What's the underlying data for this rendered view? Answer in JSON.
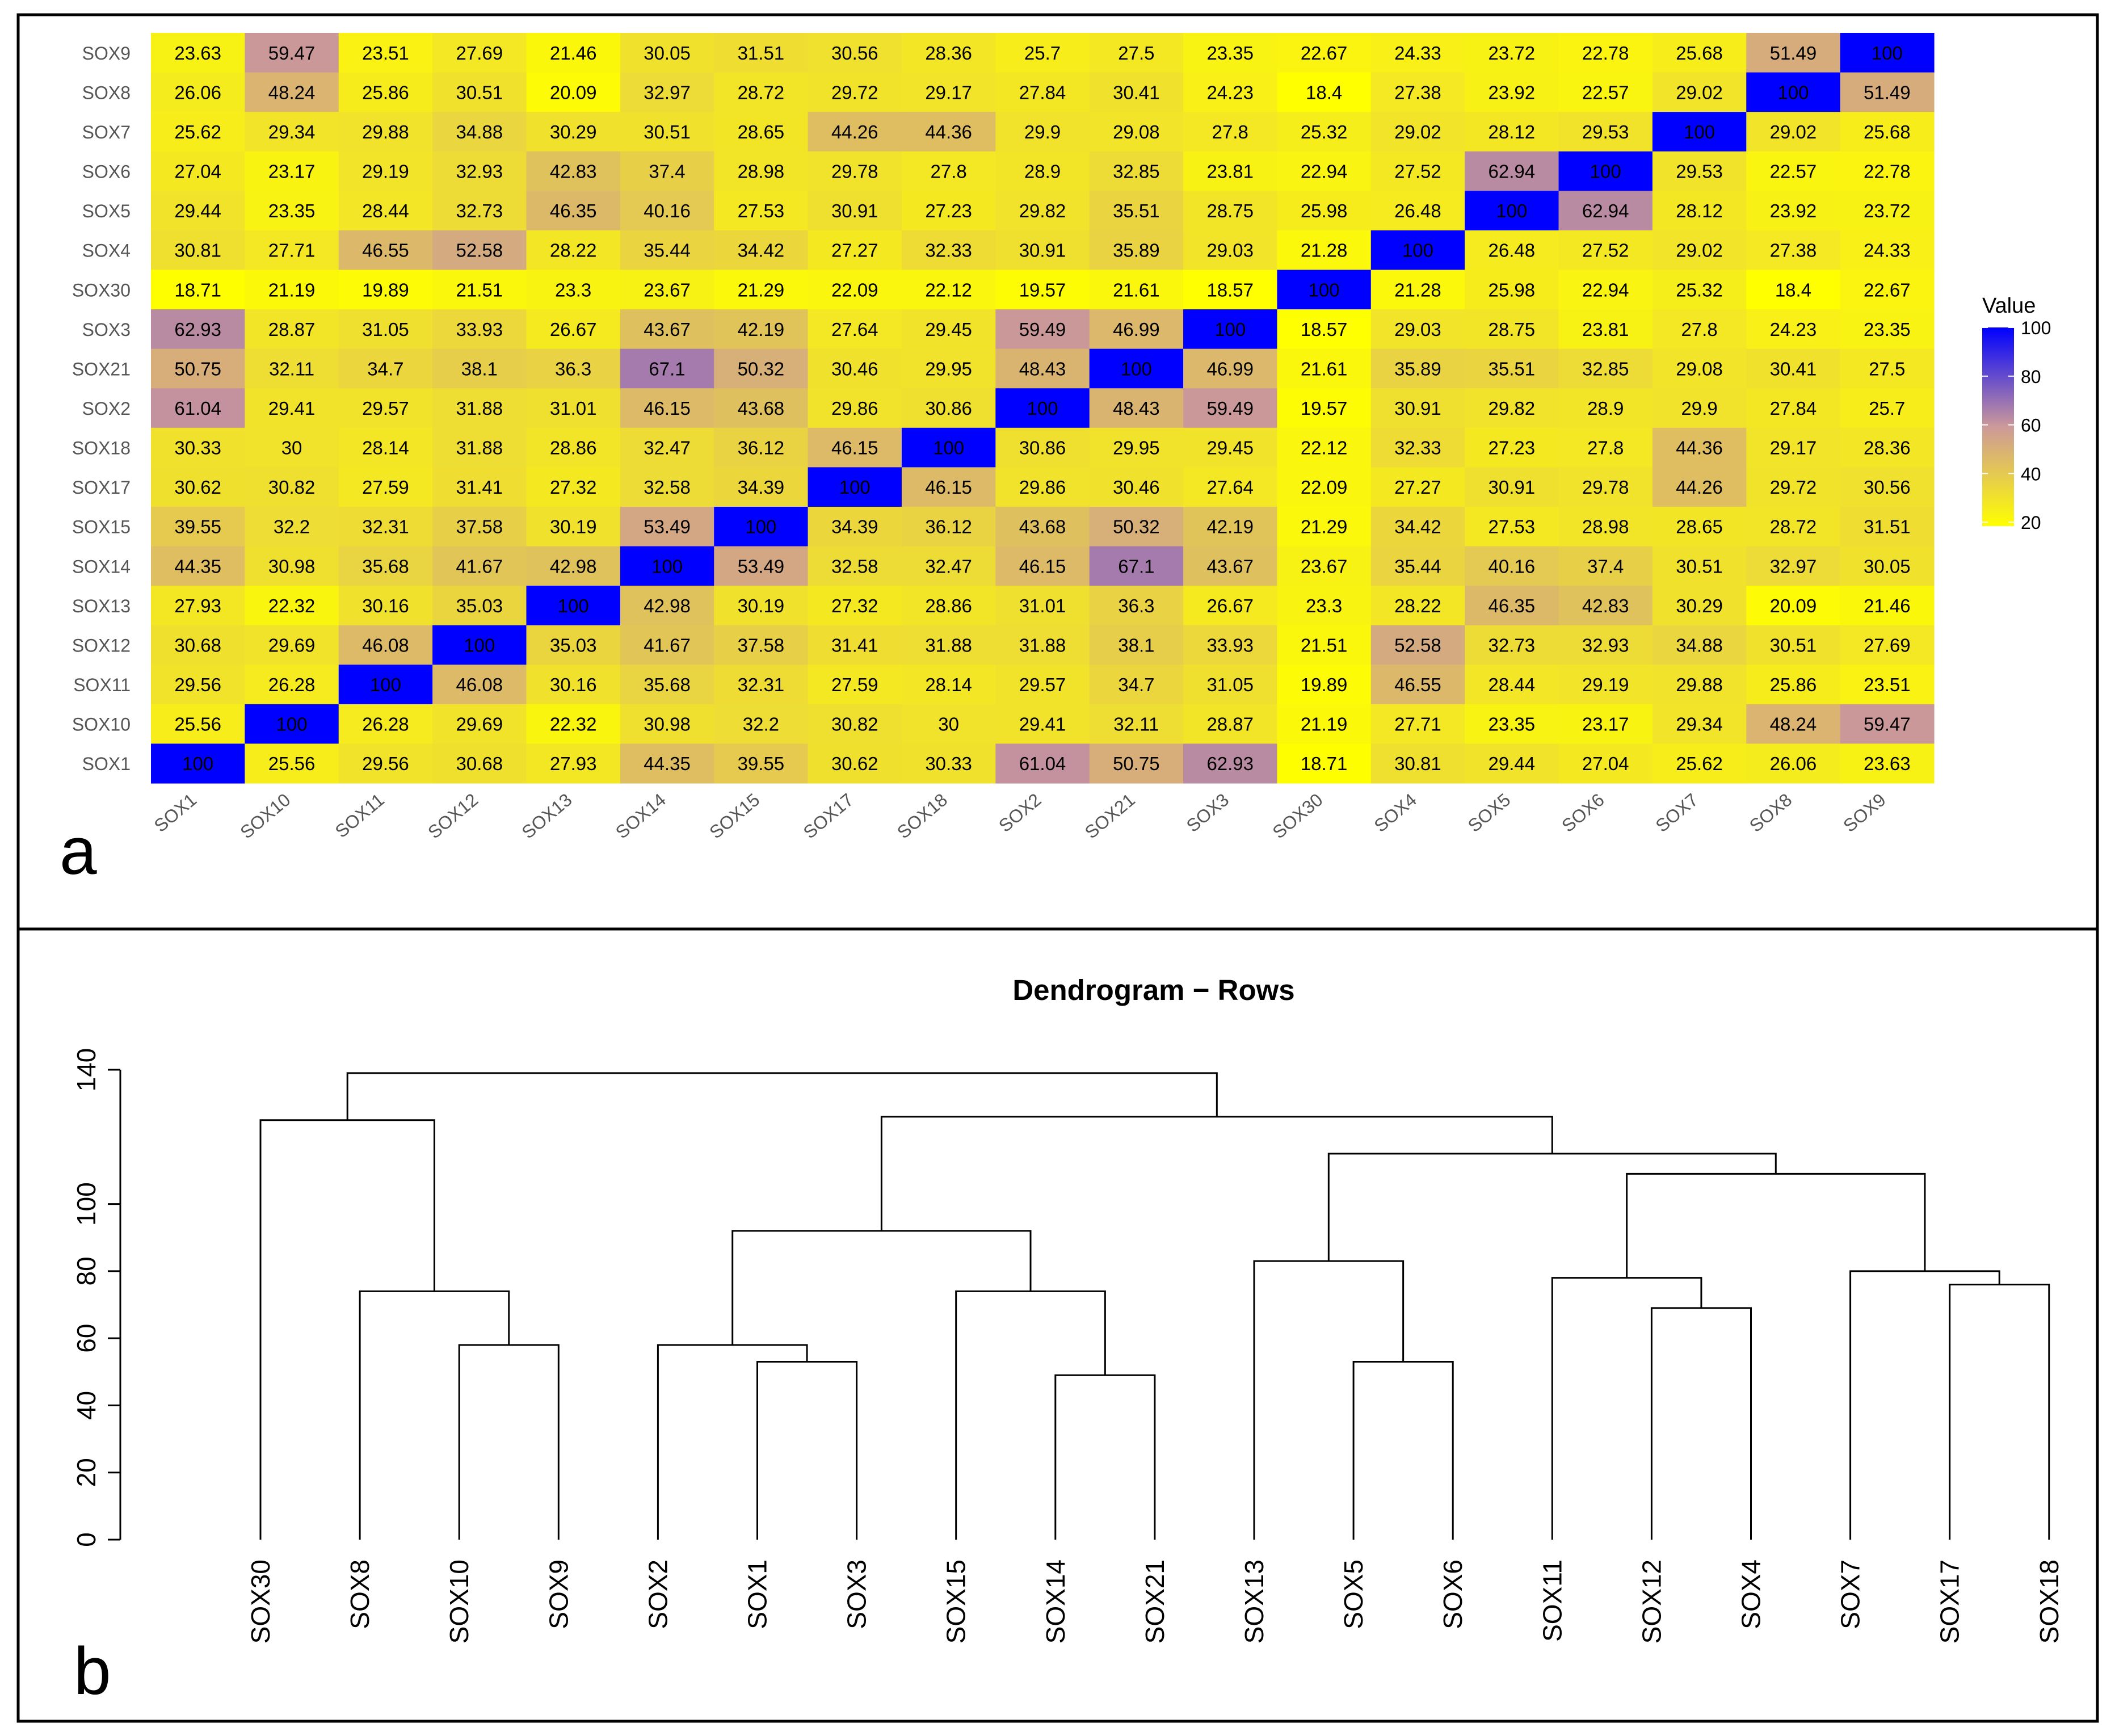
{
  "panels": {
    "a": {
      "label": "a"
    },
    "b": {
      "label": "b"
    }
  },
  "colors": {
    "low": "#ffff00",
    "mid": "#cc9999",
    "high": "#0000ff",
    "border": "#000000",
    "background": "#ffffff"
  },
  "chart_data": [
    {
      "type": "heatmap",
      "panel": "a",
      "title": "",
      "x_labels": [
        "SOX1",
        "SOX10",
        "SOX11",
        "SOX12",
        "SOX13",
        "SOX14",
        "SOX15",
        "SOX17",
        "SOX18",
        "SOX2",
        "SOX21",
        "SOX3",
        "SOX30",
        "SOX4",
        "SOX5",
        "SOX6",
        "SOX7",
        "SOX8",
        "SOX9"
      ],
      "y_labels_top_to_bottom": [
        "SOX9",
        "SOX8",
        "SOX7",
        "SOX6",
        "SOX5",
        "SOX4",
        "SOX30",
        "SOX3",
        "SOX21",
        "SOX2",
        "SOX18",
        "SOX17",
        "SOX15",
        "SOX14",
        "SOX13",
        "SOX12",
        "SOX11",
        "SOX10",
        "SOX1"
      ],
      "value_labels": [
        [
          "23.63",
          "59.47",
          "23.51",
          "27.69",
          "21.46",
          "30.05",
          "31.51",
          "30.56",
          "28.36",
          "25.7",
          "27.5",
          "23.35",
          "22.67",
          "24.33",
          "23.72",
          "22.78",
          "25.68",
          "51.49",
          "100"
        ],
        [
          "26.06",
          "48.24",
          "25.86",
          "30.51",
          "20.09",
          "32.97",
          "28.72",
          "29.72",
          "29.17",
          "27.84",
          "30.41",
          "24.23",
          "18.4",
          "27.38",
          "23.92",
          "22.57",
          "29.02",
          "100",
          "51.49"
        ],
        [
          "25.62",
          "29.34",
          "29.88",
          "34.88",
          "30.29",
          "30.51",
          "28.65",
          "44.26",
          "44.36",
          "29.9",
          "29.08",
          "27.8",
          "25.32",
          "29.02",
          "28.12",
          "29.53",
          "100",
          "29.02",
          "25.68"
        ],
        [
          "27.04",
          "23.17",
          "29.19",
          "32.93",
          "42.83",
          "37.4",
          "28.98",
          "29.78",
          "27.8",
          "28.9",
          "32.85",
          "23.81",
          "22.94",
          "27.52",
          "62.94",
          "100",
          "29.53",
          "22.57",
          "22.78"
        ],
        [
          "29.44",
          "23.35",
          "28.44",
          "32.73",
          "46.35",
          "40.16",
          "27.53",
          "30.91",
          "27.23",
          "29.82",
          "35.51",
          "28.75",
          "25.98",
          "26.48",
          "100",
          "62.94",
          "28.12",
          "23.92",
          "23.72"
        ],
        [
          "30.81",
          "27.71",
          "46.55",
          "52.58",
          "28.22",
          "35.44",
          "34.42",
          "27.27",
          "32.33",
          "30.91",
          "35.89",
          "29.03",
          "21.28",
          "100",
          "26.48",
          "27.52",
          "29.02",
          "27.38",
          "24.33"
        ],
        [
          "18.71",
          "21.19",
          "19.89",
          "21.51",
          "23.3",
          "23.67",
          "21.29",
          "22.09",
          "22.12",
          "19.57",
          "21.61",
          "18.57",
          "100",
          "21.28",
          "25.98",
          "22.94",
          "25.32",
          "18.4",
          "22.67"
        ],
        [
          "62.93",
          "28.87",
          "31.05",
          "33.93",
          "26.67",
          "43.67",
          "42.19",
          "27.64",
          "29.45",
          "59.49",
          "46.99",
          "100",
          "18.57",
          "29.03",
          "28.75",
          "23.81",
          "27.8",
          "24.23",
          "23.35"
        ],
        [
          "50.75",
          "32.11",
          "34.7",
          "38.1",
          "36.3",
          "67.1",
          "50.32",
          "30.46",
          "29.95",
          "48.43",
          "100",
          "46.99",
          "21.61",
          "35.89",
          "35.51",
          "32.85",
          "29.08",
          "30.41",
          "27.5"
        ],
        [
          "61.04",
          "29.41",
          "29.57",
          "31.88",
          "31.01",
          "46.15",
          "43.68",
          "29.86",
          "30.86",
          "100",
          "48.43",
          "59.49",
          "19.57",
          "30.91",
          "29.82",
          "28.9",
          "29.9",
          "27.84",
          "25.7"
        ],
        [
          "30.33",
          "30",
          "28.14",
          "31.88",
          "28.86",
          "32.47",
          "36.12",
          "46.15",
          "100",
          "30.86",
          "29.95",
          "29.45",
          "22.12",
          "32.33",
          "27.23",
          "27.8",
          "44.36",
          "29.17",
          "28.36"
        ],
        [
          "30.62",
          "30.82",
          "27.59",
          "31.41",
          "27.32",
          "32.58",
          "34.39",
          "100",
          "46.15",
          "29.86",
          "30.46",
          "27.64",
          "22.09",
          "27.27",
          "30.91",
          "29.78",
          "44.26",
          "29.72",
          "30.56"
        ],
        [
          "39.55",
          "32.2",
          "32.31",
          "37.58",
          "30.19",
          "53.49",
          "100",
          "34.39",
          "36.12",
          "43.68",
          "50.32",
          "42.19",
          "21.29",
          "34.42",
          "27.53",
          "28.98",
          "28.65",
          "28.72",
          "31.51"
        ],
        [
          "44.35",
          "30.98",
          "35.68",
          "41.67",
          "42.98",
          "100",
          "53.49",
          "32.58",
          "32.47",
          "46.15",
          "67.1",
          "43.67",
          "23.67",
          "35.44",
          "40.16",
          "37.4",
          "30.51",
          "32.97",
          "30.05"
        ],
        [
          "27.93",
          "22.32",
          "30.16",
          "35.03",
          "100",
          "42.98",
          "30.19",
          "27.32",
          "28.86",
          "31.01",
          "36.3",
          "26.67",
          "23.3",
          "28.22",
          "46.35",
          "42.83",
          "30.29",
          "20.09",
          "21.46"
        ],
        [
          "30.68",
          "29.69",
          "46.08",
          "100",
          "35.03",
          "41.67",
          "37.58",
          "31.41",
          "31.88",
          "31.88",
          "38.1",
          "33.93",
          "21.51",
          "52.58",
          "32.73",
          "32.93",
          "34.88",
          "30.51",
          "27.69"
        ],
        [
          "29.56",
          "26.28",
          "100",
          "46.08",
          "30.16",
          "35.68",
          "32.31",
          "27.59",
          "28.14",
          "29.57",
          "34.7",
          "31.05",
          "19.89",
          "46.55",
          "28.44",
          "29.19",
          "29.88",
          "25.86",
          "23.51"
        ],
        [
          "25.56",
          "100",
          "26.28",
          "29.69",
          "22.32",
          "30.98",
          "32.2",
          "30.82",
          "30",
          "29.41",
          "32.11",
          "28.87",
          "21.19",
          "27.71",
          "23.35",
          "23.17",
          "29.34",
          "48.24",
          "59.47"
        ],
        [
          "100",
          "25.56",
          "29.56",
          "30.68",
          "27.93",
          "44.35",
          "39.55",
          "30.62",
          "30.33",
          "61.04",
          "50.75",
          "62.93",
          "18.71",
          "30.81",
          "29.44",
          "27.04",
          "25.62",
          "26.06",
          "23.63"
        ]
      ],
      "legend": {
        "title": "Value",
        "ticks": [
          "100",
          "80",
          "60",
          "40",
          "20"
        ],
        "tick_values": [
          100,
          80,
          60,
          40,
          20
        ],
        "range": [
          18.4,
          100
        ],
        "placement": "right"
      }
    },
    {
      "type": "dendrogram",
      "panel": "b",
      "title": "Dendrogram − Rows",
      "ylim": [
        0,
        140
      ],
      "y_ticks": [
        "0",
        "20",
        "40",
        "60",
        "80",
        "100",
        "140"
      ],
      "y_tick_values": [
        0,
        20,
        40,
        60,
        80,
        100,
        140
      ],
      "leaves": [
        "SOX30",
        "SOX8",
        "SOX10",
        "SOX9",
        "SOX2",
        "SOX1",
        "SOX3",
        "SOX15",
        "SOX14",
        "SOX21",
        "SOX13",
        "SOX5",
        "SOX6",
        "SOX11",
        "SOX12",
        "SOX4",
        "SOX7",
        "SOX17",
        "SOX18"
      ],
      "merges": [
        {
          "left": 5,
          "right": 6,
          "height": 53
        },
        {
          "left": 4,
          "right": -1,
          "height": 58
        },
        {
          "left": 8,
          "right": 9,
          "height": 49
        },
        {
          "left": 7,
          "right": -3,
          "height": 74
        },
        {
          "left": -2,
          "right": -4,
          "height": 92
        },
        {
          "left": 11,
          "right": 12,
          "height": 53
        },
        {
          "left": 10,
          "right": -6,
          "height": 83
        },
        {
          "left": 14,
          "right": 15,
          "height": 69
        },
        {
          "left": 13,
          "right": -8,
          "height": 78
        },
        {
          "left": 17,
          "right": 18,
          "height": 76
        },
        {
          "left": 16,
          "right": -10,
          "height": 80
        },
        {
          "left": -9,
          "right": -11,
          "height": 109
        },
        {
          "left": -7,
          "right": -12,
          "height": 115
        },
        {
          "left": -5,
          "right": -13,
          "height": 126
        },
        {
          "left": 2,
          "right": 3,
          "height": 58
        },
        {
          "left": 1,
          "right": -15,
          "height": 74
        },
        {
          "left": 0,
          "right": -16,
          "height": 125
        },
        {
          "left": -17,
          "right": -14,
          "height": 139
        }
      ]
    }
  ]
}
